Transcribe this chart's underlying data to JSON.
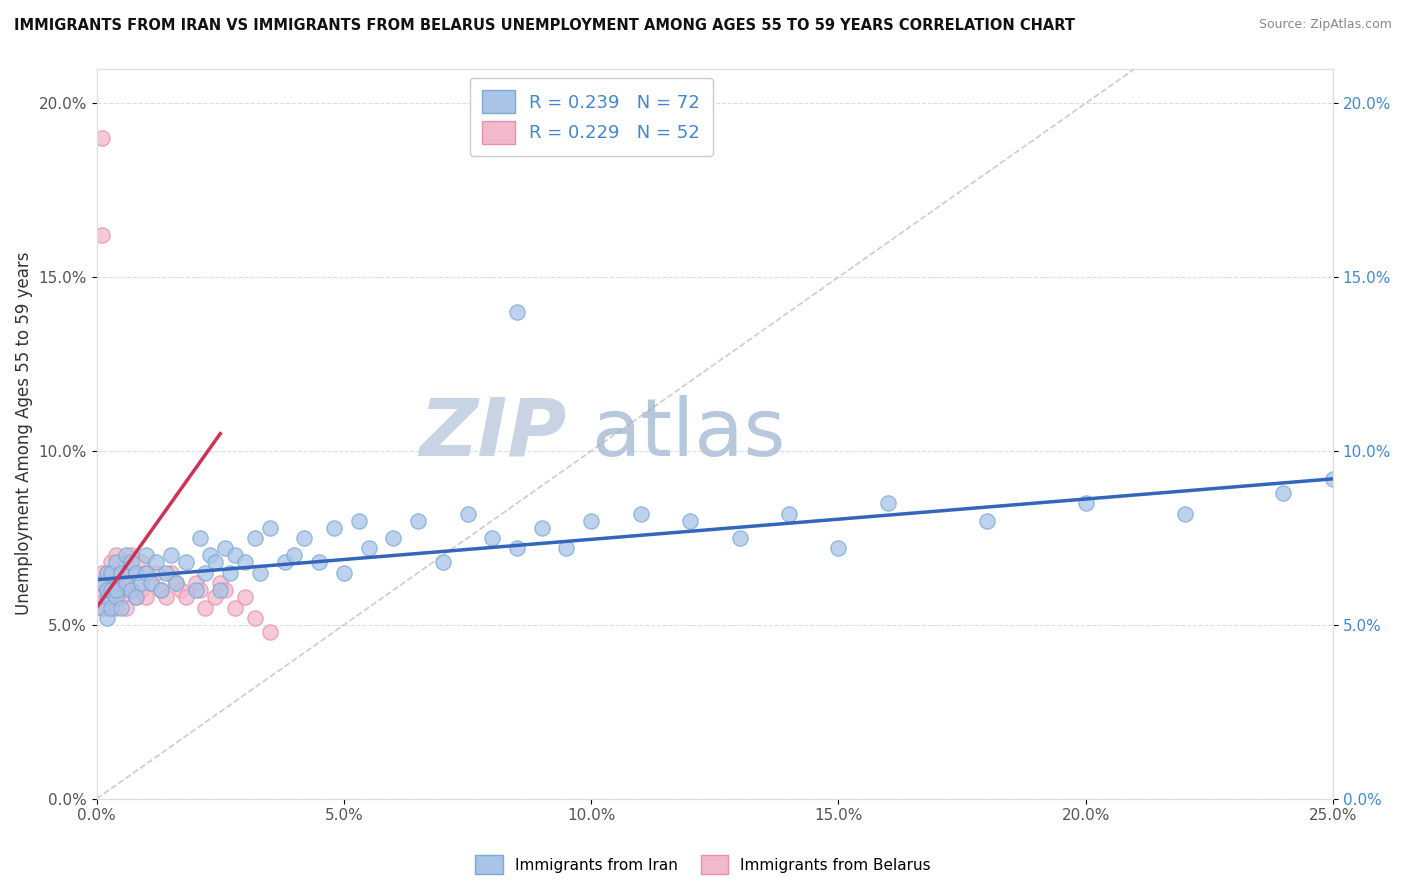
{
  "title": "IMMIGRANTS FROM IRAN VS IMMIGRANTS FROM BELARUS UNEMPLOYMENT AMONG AGES 55 TO 59 YEARS CORRELATION CHART",
  "source": "Source: ZipAtlas.com",
  "ylabel": "Unemployment Among Ages 55 to 59 years",
  "xlim": [
    0,
    0.25
  ],
  "ylim": [
    0,
    0.21
  ],
  "xticks": [
    0.0,
    0.05,
    0.1,
    0.15,
    0.2,
    0.25
  ],
  "xticklabels": [
    "0.0%",
    "5.0%",
    "10.0%",
    "15.0%",
    "20.0%",
    "25.0%"
  ],
  "yticks": [
    0.0,
    0.05,
    0.1,
    0.15,
    0.2
  ],
  "yticklabels": [
    "0.0%",
    "5.0%",
    "10.0%",
    "15.0%",
    "20.0%"
  ],
  "iran_color": "#aac4e8",
  "iran_edge": "#7aaad4",
  "belarus_color": "#f4b8cc",
  "belarus_edge": "#e890aa",
  "iran_line_color": "#3366bb",
  "belarus_line_color": "#cc3355",
  "iran_R": 0.239,
  "iran_N": 72,
  "belarus_R": 0.229,
  "belarus_N": 52,
  "watermark_zip": "ZIP",
  "watermark_atlas": "atlas",
  "watermark_color": "#d4dce8",
  "legend_iran_label": "Immigrants from Iran",
  "legend_belarus_label": "Immigrants from Belarus",
  "iran_trend_x0": 0.0,
  "iran_trend_x1": 0.25,
  "iran_trend_y0": 0.063,
  "iran_trend_y1": 0.092,
  "belarus_trend_x0": 0.0,
  "belarus_trend_x1": 0.025,
  "belarus_trend_y0": 0.055,
  "belarus_trend_y1": 0.105,
  "ref_line_x0": 0.0,
  "ref_line_x1": 0.21,
  "ref_line_y0": 0.0,
  "ref_line_y1": 0.21,
  "iran_x": [
    0.001,
    0.001,
    0.002,
    0.002,
    0.002,
    0.002,
    0.003,
    0.003,
    0.003,
    0.004,
    0.004,
    0.004,
    0.005,
    0.005,
    0.006,
    0.006,
    0.007,
    0.007,
    0.008,
    0.008,
    0.009,
    0.01,
    0.01,
    0.011,
    0.012,
    0.013,
    0.014,
    0.015,
    0.016,
    0.018,
    0.02,
    0.021,
    0.022,
    0.023,
    0.024,
    0.025,
    0.026,
    0.027,
    0.028,
    0.03,
    0.032,
    0.033,
    0.035,
    0.038,
    0.04,
    0.042,
    0.045,
    0.048,
    0.05,
    0.053,
    0.055,
    0.06,
    0.065,
    0.07,
    0.075,
    0.08,
    0.085,
    0.09,
    0.095,
    0.1,
    0.11,
    0.12,
    0.13,
    0.14,
    0.16,
    0.18,
    0.2,
    0.22,
    0.24,
    0.25,
    0.085,
    0.15
  ],
  "iran_y": [
    0.062,
    0.055,
    0.058,
    0.065,
    0.06,
    0.052,
    0.055,
    0.065,
    0.06,
    0.058,
    0.068,
    0.06,
    0.055,
    0.065,
    0.062,
    0.07,
    0.06,
    0.068,
    0.058,
    0.065,
    0.062,
    0.065,
    0.07,
    0.062,
    0.068,
    0.06,
    0.065,
    0.07,
    0.062,
    0.068,
    0.06,
    0.075,
    0.065,
    0.07,
    0.068,
    0.06,
    0.072,
    0.065,
    0.07,
    0.068,
    0.075,
    0.065,
    0.078,
    0.068,
    0.07,
    0.075,
    0.068,
    0.078,
    0.065,
    0.08,
    0.072,
    0.075,
    0.08,
    0.068,
    0.082,
    0.075,
    0.14,
    0.078,
    0.072,
    0.08,
    0.082,
    0.08,
    0.075,
    0.082,
    0.085,
    0.08,
    0.085,
    0.082,
    0.088,
    0.092,
    0.072,
    0.072
  ],
  "belarus_x": [
    0.001,
    0.001,
    0.001,
    0.001,
    0.002,
    0.002,
    0.002,
    0.002,
    0.002,
    0.003,
    0.003,
    0.003,
    0.003,
    0.004,
    0.004,
    0.004,
    0.004,
    0.005,
    0.005,
    0.005,
    0.006,
    0.006,
    0.006,
    0.007,
    0.007,
    0.007,
    0.008,
    0.008,
    0.009,
    0.009,
    0.01,
    0.01,
    0.011,
    0.012,
    0.013,
    0.014,
    0.015,
    0.016,
    0.017,
    0.018,
    0.02,
    0.021,
    0.022,
    0.024,
    0.025,
    0.026,
    0.028,
    0.03,
    0.032,
    0.035,
    0.001,
    0.001
  ],
  "belarus_y": [
    0.062,
    0.058,
    0.055,
    0.065,
    0.06,
    0.055,
    0.058,
    0.065,
    0.06,
    0.062,
    0.058,
    0.068,
    0.065,
    0.055,
    0.062,
    0.06,
    0.07,
    0.058,
    0.065,
    0.06,
    0.055,
    0.068,
    0.062,
    0.06,
    0.065,
    0.07,
    0.058,
    0.065,
    0.06,
    0.068,
    0.058,
    0.065,
    0.062,
    0.065,
    0.06,
    0.058,
    0.065,
    0.062,
    0.06,
    0.058,
    0.062,
    0.06,
    0.055,
    0.058,
    0.062,
    0.06,
    0.055,
    0.058,
    0.052,
    0.048,
    0.19,
    0.162
  ]
}
